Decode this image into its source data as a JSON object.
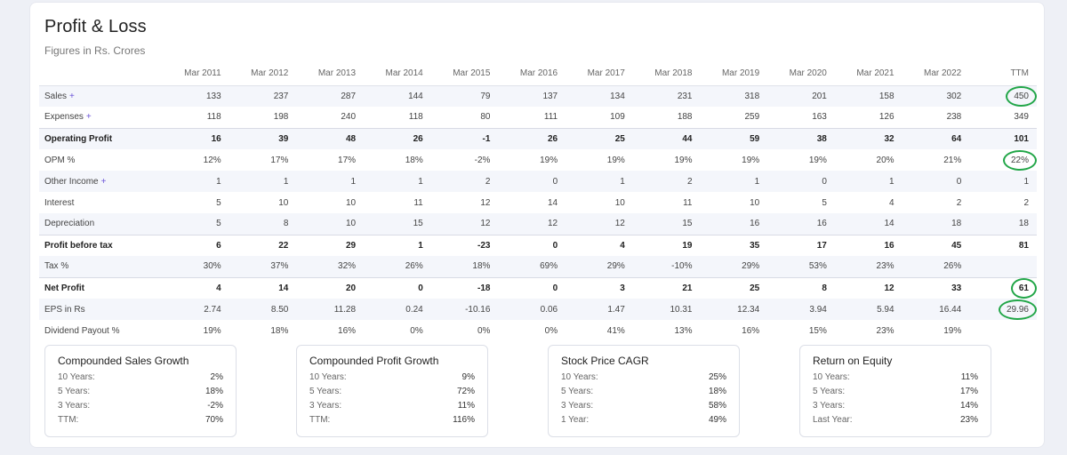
{
  "title": "Profit & Loss",
  "subtitle": "Figures in Rs. Crores",
  "chart_data": {
    "type": "table",
    "columns": [
      "Mar 2011",
      "Mar 2012",
      "Mar 2013",
      "Mar 2014",
      "Mar 2015",
      "Mar 2016",
      "Mar 2017",
      "Mar 2018",
      "Mar 2019",
      "Mar 2020",
      "Mar 2021",
      "Mar 2022",
      "TTM"
    ],
    "rows": [
      {
        "label": "Sales",
        "plus": "+",
        "values": [
          "133",
          "237",
          "287",
          "144",
          "79",
          "137",
          "134",
          "231",
          "318",
          "201",
          "158",
          "302",
          "450"
        ]
      },
      {
        "label": "Expenses",
        "plus": "+",
        "values": [
          "118",
          "198",
          "240",
          "118",
          "80",
          "111",
          "109",
          "188",
          "259",
          "163",
          "126",
          "238",
          "349"
        ]
      },
      {
        "label": "Operating Profit",
        "values": [
          "16",
          "39",
          "48",
          "26",
          "-1",
          "26",
          "25",
          "44",
          "59",
          "38",
          "32",
          "64",
          "101"
        ]
      },
      {
        "label": "OPM %",
        "values": [
          "12%",
          "17%",
          "17%",
          "18%",
          "-2%",
          "19%",
          "19%",
          "19%",
          "19%",
          "19%",
          "20%",
          "21%",
          "22%"
        ]
      },
      {
        "label": "Other Income",
        "plus": "+",
        "values": [
          "1",
          "1",
          "1",
          "1",
          "2",
          "0",
          "1",
          "2",
          "1",
          "0",
          "1",
          "0",
          "1"
        ]
      },
      {
        "label": "Interest",
        "values": [
          "5",
          "10",
          "10",
          "11",
          "12",
          "14",
          "10",
          "11",
          "10",
          "5",
          "4",
          "2",
          "2"
        ]
      },
      {
        "label": "Depreciation",
        "values": [
          "5",
          "8",
          "10",
          "15",
          "12",
          "12",
          "12",
          "15",
          "16",
          "16",
          "14",
          "18",
          "18"
        ]
      },
      {
        "label": "Profit before tax",
        "values": [
          "6",
          "22",
          "29",
          "1",
          "-23",
          "0",
          "4",
          "19",
          "35",
          "17",
          "16",
          "45",
          "81"
        ]
      },
      {
        "label": "Tax %",
        "values": [
          "30%",
          "37%",
          "32%",
          "26%",
          "18%",
          "69%",
          "29%",
          "-10%",
          "29%",
          "53%",
          "23%",
          "26%",
          ""
        ]
      },
      {
        "label": "Net Profit",
        "values": [
          "4",
          "14",
          "20",
          "0",
          "-18",
          "0",
          "3",
          "21",
          "25",
          "8",
          "12",
          "33",
          "61"
        ]
      },
      {
        "label": "EPS in Rs",
        "values": [
          "2.74",
          "8.50",
          "11.28",
          "0.24",
          "-10.16",
          "0.06",
          "1.47",
          "10.31",
          "12.34",
          "3.94",
          "5.94",
          "16.44",
          "29.96"
        ]
      },
      {
        "label": "Dividend Payout %",
        "values": [
          "19%",
          "18%",
          "16%",
          "0%",
          "0%",
          "0%",
          "41%",
          "13%",
          "16%",
          "15%",
          "23%",
          "19%",
          ""
        ]
      }
    ],
    "highlight_color": "#22a648",
    "accent_color": "#6b55d8"
  },
  "summary": [
    {
      "title": "Compounded Sales Growth",
      "rows": [
        [
          "10 Years:",
          "2%"
        ],
        [
          "5 Years:",
          "18%"
        ],
        [
          "3 Years:",
          "-2%"
        ],
        [
          "TTM:",
          "70%"
        ]
      ]
    },
    {
      "title": "Compounded Profit Growth",
      "rows": [
        [
          "10 Years:",
          "9%"
        ],
        [
          "5 Years:",
          "72%"
        ],
        [
          "3 Years:",
          "11%"
        ],
        [
          "TTM:",
          "116%"
        ]
      ]
    },
    {
      "title": "Stock Price CAGR",
      "rows": [
        [
          "10 Years:",
          "25%"
        ],
        [
          "5 Years:",
          "18%"
        ],
        [
          "3 Years:",
          "58%"
        ],
        [
          "1 Year:",
          "49%"
        ]
      ]
    },
    {
      "title": "Return on Equity",
      "rows": [
        [
          "10 Years:",
          "11%"
        ],
        [
          "5 Years:",
          "17%"
        ],
        [
          "3 Years:",
          "14%"
        ],
        [
          "Last Year:",
          "23%"
        ]
      ]
    }
  ]
}
